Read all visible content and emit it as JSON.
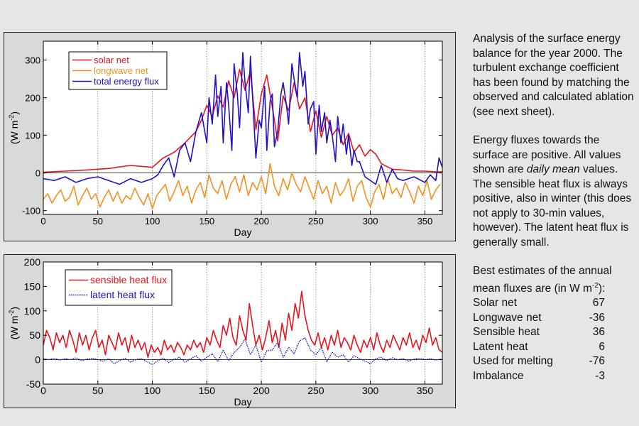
{
  "colors": {
    "solar": "#e8141e",
    "longwave": "#f5901e",
    "total": "#2010c8",
    "sensible": "#e8141e",
    "latent": "#2010c8"
  },
  "chart_data": [
    {
      "type": "line",
      "xlabel": "Day",
      "ylabel": "(W m^-2)",
      "ylabel_main": "(W m",
      "ylabel_sup": "-2",
      "xlim": [
        0,
        366
      ],
      "ylim": [
        -110,
        350
      ],
      "xticks": [
        0,
        50,
        100,
        150,
        200,
        250,
        300,
        350
      ],
      "xtick_labels": [
        "0",
        "50",
        "100",
        "150",
        "200",
        "250",
        "300",
        "350"
      ],
      "yticks": [
        -100,
        0,
        100,
        200,
        300
      ],
      "ytick_labels": [
        "-100",
        "0",
        "100",
        "200",
        "300"
      ],
      "vgrid": [
        50,
        100,
        150,
        200,
        250,
        300,
        350
      ],
      "legend": [
        "solar net",
        "longwave net",
        "total energy flux"
      ],
      "series": [
        {
          "name": "solar net",
          "style": "solid",
          "x": [
            0,
            20,
            40,
            60,
            80,
            100,
            110,
            120,
            130,
            140,
            145,
            150,
            155,
            160,
            165,
            170,
            175,
            180,
            185,
            190,
            195,
            200,
            205,
            210,
            215,
            220,
            225,
            230,
            235,
            240,
            245,
            250,
            255,
            260,
            265,
            270,
            275,
            280,
            285,
            290,
            295,
            300,
            305,
            310,
            320,
            330,
            340,
            350,
            360,
            366
          ],
          "values": [
            2,
            5,
            8,
            12,
            20,
            15,
            40,
            55,
            80,
            110,
            140,
            180,
            150,
            205,
            175,
            245,
            200,
            275,
            220,
            270,
            115,
            210,
            260,
            175,
            85,
            205,
            165,
            240,
            170,
            200,
            110,
            165,
            95,
            150,
            100,
            120,
            75,
            105,
            55,
            75,
            45,
            62,
            50,
            25,
            10,
            8,
            5,
            5,
            3,
            3
          ]
        },
        {
          "name": "longwave net",
          "style": "solid",
          "x": [
            0,
            4,
            8,
            12,
            16,
            20,
            24,
            28,
            32,
            36,
            40,
            44,
            48,
            52,
            56,
            60,
            64,
            68,
            72,
            76,
            80,
            84,
            88,
            92,
            96,
            100,
            104,
            108,
            112,
            116,
            120,
            124,
            128,
            132,
            136,
            140,
            144,
            148,
            152,
            156,
            160,
            164,
            168,
            172,
            176,
            180,
            184,
            188,
            192,
            196,
            200,
            204,
            208,
            212,
            216,
            220,
            224,
            228,
            232,
            236,
            240,
            244,
            248,
            252,
            256,
            260,
            264,
            268,
            272,
            276,
            280,
            284,
            288,
            292,
            296,
            300,
            304,
            308,
            312,
            316,
            320,
            324,
            328,
            332,
            336,
            340,
            344,
            348,
            352,
            356,
            360,
            364
          ],
          "values": [
            -70,
            -55,
            -80,
            -60,
            -45,
            -75,
            -65,
            -35,
            -85,
            -60,
            -40,
            -70,
            -55,
            -90,
            -65,
            -45,
            -75,
            -50,
            -80,
            -60,
            -70,
            -40,
            -65,
            -85,
            -55,
            -95,
            -60,
            -45,
            -30,
            -75,
            -50,
            -20,
            -60,
            -35,
            -80,
            -45,
            -25,
            -65,
            -5,
            -40,
            -55,
            -20,
            -70,
            -30,
            -10,
            -50,
            -5,
            -60,
            -25,
            -45,
            -10,
            -55,
            25,
            -35,
            -60,
            -15,
            -45,
            0,
            -30,
            -50,
            -10,
            -40,
            -70,
            -20,
            -55,
            -35,
            -80,
            -25,
            -60,
            -45,
            -15,
            -75,
            -35,
            -20,
            -65,
            -90,
            -50,
            -30,
            -70,
            -15,
            -55,
            -40,
            -65,
            -25,
            -50,
            -80,
            -35,
            -60,
            -20,
            -70,
            -45,
            -30
          ]
        },
        {
          "name": "total energy flux",
          "style": "solid",
          "x": [
            0,
            10,
            20,
            30,
            40,
            50,
            60,
            70,
            80,
            90,
            100,
            105,
            110,
            115,
            120,
            125,
            130,
            135,
            140,
            145,
            150,
            152,
            155,
            158,
            160,
            163,
            165,
            168,
            170,
            173,
            175,
            178,
            180,
            183,
            185,
            188,
            190,
            192,
            195,
            198,
            200,
            203,
            205,
            208,
            210,
            212,
            215,
            218,
            220,
            223,
            225,
            228,
            230,
            233,
            235,
            238,
            240,
            243,
            245,
            248,
            250,
            253,
            255,
            258,
            260,
            263,
            265,
            268,
            270,
            273,
            275,
            278,
            280,
            283,
            285,
            288,
            290,
            295,
            300,
            305,
            310,
            315,
            320,
            325,
            330,
            340,
            350,
            355,
            360,
            363,
            366
          ],
          "values": [
            -15,
            -20,
            -10,
            -25,
            -15,
            -10,
            -20,
            -30,
            -15,
            -25,
            -15,
            -5,
            20,
            40,
            -10,
            60,
            80,
            30,
            110,
            160,
            80,
            200,
            130,
            260,
            150,
            230,
            80,
            240,
            180,
            60,
            290,
            210,
            120,
            320,
            240,
            160,
            310,
            200,
            40,
            140,
            120,
            230,
            60,
            190,
            210,
            70,
            110,
            210,
            240,
            180,
            130,
            290,
            250,
            200,
            320,
            230,
            270,
            130,
            170,
            190,
            50,
            180,
            110,
            160,
            80,
            140,
            100,
            30,
            150,
            80,
            130,
            50,
            100,
            20,
            60,
            30,
            30,
            -10,
            -20,
            -30,
            20,
            -25,
            10,
            -15,
            -20,
            -10,
            -25,
            -5,
            -20,
            40,
            15
          ]
        }
      ]
    },
    {
      "type": "line",
      "xlabel": "Day",
      "ylabel": "(W m^-2)",
      "ylabel_main": "(W m",
      "ylabel_sup": "-2",
      "xlim": [
        0,
        366
      ],
      "ylim": [
        -50,
        200
      ],
      "xticks": [
        0,
        50,
        100,
        150,
        200,
        250,
        300,
        350
      ],
      "xtick_labels": [
        "0",
        "50",
        "100",
        "150",
        "200",
        "250",
        "300",
        "350"
      ],
      "yticks": [
        -50,
        0,
        50,
        100,
        150,
        200
      ],
      "ytick_labels": [
        "-50",
        "0",
        "50",
        "100",
        "150",
        "200"
      ],
      "vgrid": [
        50,
        100,
        150,
        200,
        250,
        300,
        350
      ],
      "legend": [
        "sensible heat flux",
        "latent heat flux"
      ],
      "series": [
        {
          "name": "sensible heat flux",
          "style": "solid",
          "x": [
            0,
            3,
            6,
            9,
            12,
            15,
            18,
            21,
            24,
            27,
            30,
            33,
            36,
            39,
            42,
            45,
            48,
            51,
            54,
            57,
            60,
            63,
            66,
            69,
            72,
            75,
            78,
            81,
            84,
            87,
            90,
            93,
            96,
            99,
            102,
            105,
            108,
            111,
            114,
            117,
            120,
            123,
            126,
            129,
            132,
            135,
            138,
            141,
            144,
            147,
            150,
            153,
            156,
            159,
            162,
            165,
            168,
            171,
            174,
            177,
            180,
            183,
            186,
            189,
            192,
            195,
            198,
            201,
            204,
            207,
            210,
            213,
            216,
            219,
            222,
            225,
            228,
            231,
            234,
            237,
            240,
            243,
            246,
            249,
            252,
            255,
            258,
            261,
            264,
            267,
            270,
            273,
            276,
            279,
            282,
            285,
            288,
            291,
            294,
            297,
            300,
            303,
            306,
            309,
            312,
            315,
            318,
            321,
            324,
            327,
            330,
            333,
            336,
            339,
            342,
            345,
            348,
            351,
            354,
            357,
            360,
            363,
            366
          ],
          "values": [
            30,
            60,
            45,
            20,
            55,
            35,
            50,
            25,
            60,
            40,
            15,
            55,
            30,
            50,
            20,
            45,
            60,
            25,
            40,
            10,
            50,
            35,
            20,
            55,
            30,
            45,
            15,
            50,
            25,
            40,
            20,
            35,
            5,
            30,
            15,
            25,
            10,
            40,
            20,
            30,
            15,
            35,
            25,
            10,
            30,
            20,
            40,
            25,
            35,
            15,
            45,
            30,
            60,
            40,
            25,
            70,
            50,
            85,
            45,
            30,
            90,
            60,
            40,
            115,
            70,
            30,
            50,
            20,
            45,
            80,
            35,
            60,
            25,
            75,
            40,
            95,
            60,
            115,
            85,
            140,
            90,
            60,
            40,
            30,
            55,
            25,
            45,
            20,
            50,
            30,
            60,
            25,
            45,
            35,
            20,
            50,
            30,
            15,
            40,
            25,
            45,
            20,
            55,
            30,
            15,
            40,
            25,
            50,
            35,
            20,
            45,
            30,
            55,
            25,
            40,
            20,
            50,
            35,
            65,
            30,
            45,
            20,
            15
          ]
        },
        {
          "name": "latent heat flux",
          "style": "dotted",
          "x": [
            0,
            5,
            10,
            15,
            20,
            25,
            30,
            35,
            40,
            45,
            50,
            55,
            60,
            65,
            70,
            75,
            80,
            85,
            90,
            95,
            100,
            105,
            110,
            115,
            120,
            125,
            130,
            135,
            140,
            145,
            150,
            155,
            160,
            165,
            170,
            175,
            180,
            185,
            190,
            195,
            200,
            205,
            210,
            215,
            220,
            225,
            230,
            235,
            240,
            245,
            250,
            255,
            260,
            265,
            270,
            275,
            280,
            285,
            290,
            295,
            300,
            305,
            310,
            315,
            320,
            325,
            330,
            335,
            340,
            345,
            350,
            355,
            360,
            366
          ],
          "values": [
            2,
            0,
            3,
            -1,
            2,
            0,
            4,
            -2,
            1,
            3,
            0,
            -3,
            2,
            -8,
            -2,
            3,
            -5,
            0,
            2,
            -4,
            -10,
            -2,
            3,
            -6,
            1,
            5,
            -5,
            2,
            8,
            -3,
            5,
            12,
            -4,
            20,
            -2,
            15,
            25,
            42,
            10,
            30,
            -5,
            18,
            20,
            35,
            5,
            25,
            12,
            38,
            45,
            20,
            10,
            25,
            -4,
            15,
            5,
            10,
            -5,
            8,
            2,
            -3,
            -8,
            2,
            5,
            -2,
            4,
            0,
            2,
            -3,
            1,
            3,
            0,
            2,
            -1,
            2
          ]
        }
      ]
    }
  ],
  "side": {
    "p1": "Analysis of the surface energy balance for the year 2000. The turbulent exchange coefficient has been found by matching the observed and calculated ablation (see next sheet).",
    "p2_a": "Energy fluxes towards the surface are positive. All values shown are ",
    "p2_em": "daily mean",
    "p2_b": " values. The sensible heat flux is always positive, also in winter (this does not apply to 30-min values, however). The latent heat flux is generally small.",
    "p3_a": "Best estimates of the annual mean fluxes are (in W m",
    "p3_sup": "-2",
    "p3_b": "):",
    "fluxes": [
      {
        "name": "Solar net",
        "value": "67"
      },
      {
        "name": "Longwave net",
        "value": "-36"
      },
      {
        "name": "Sensible heat",
        "value": "36"
      },
      {
        "name": "Latent heat",
        "value": "6"
      },
      {
        "name": "Used for melting",
        "value": "-76"
      },
      {
        "name": "Imbalance",
        "value": "-3"
      }
    ]
  }
}
